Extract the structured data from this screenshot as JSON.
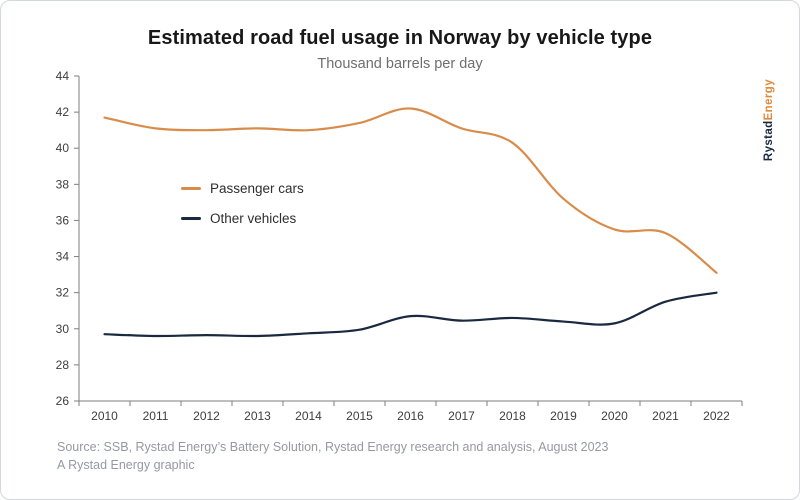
{
  "header": {
    "title": "Estimated road fuel usage in Norway by vehicle type",
    "subtitle": "Thousand barrels per day"
  },
  "branding": {
    "logo_part1": "Rystad",
    "logo_part2": "Energy",
    "logo_color1": "#1b2940",
    "logo_color2": "#e08a3c"
  },
  "footer": {
    "source_line1": "Source: SSB, Rystad Energy’s Battery Solution, Rystad Energy research and analysis, August 2023",
    "source_line2": "A Rystad Energy graphic"
  },
  "chart_data": {
    "type": "line",
    "title": "Estimated road fuel usage in Norway by vehicle type",
    "subtitle": "Thousand barrels per day",
    "x": [
      2010,
      2011,
      2012,
      2013,
      2014,
      2015,
      2016,
      2017,
      2018,
      2019,
      2020,
      2021,
      2022
    ],
    "series": [
      {
        "name": "Passenger cars",
        "color": "#d98c4a",
        "values": [
          41.7,
          41.1,
          41.0,
          41.1,
          41.0,
          41.4,
          42.2,
          41.1,
          40.3,
          37.2,
          35.5,
          35.3,
          33.1
        ]
      },
      {
        "name": "Other vehicles",
        "color": "#1b2940",
        "values": [
          29.7,
          29.6,
          29.65,
          29.6,
          29.75,
          29.95,
          30.7,
          30.45,
          30.6,
          30.4,
          30.3,
          31.5,
          32.0
        ]
      }
    ],
    "ylim": [
      26,
      44
    ],
    "ytick_step": 2,
    "yticks": [
      26,
      28,
      30,
      32,
      34,
      36,
      38,
      40,
      42,
      44
    ],
    "xlabel": "",
    "ylabel": "Thousand barrels per day",
    "grid": false,
    "legend_position": "inside-left",
    "axis_color": "#7d7d7d"
  }
}
